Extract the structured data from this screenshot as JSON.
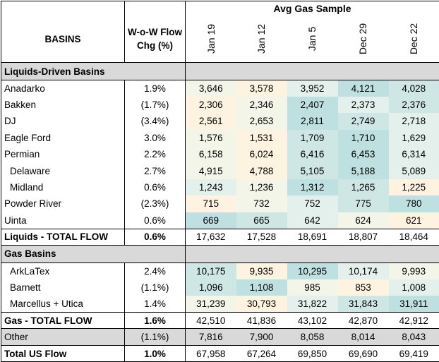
{
  "header": {
    "group_title": "Avg Gas Sample",
    "basins_label": "BASINS",
    "flow_label_line1": "W-o-W Flow",
    "flow_label_line2": "Chg (%)",
    "dates": [
      "Jan 19",
      "Jan 12",
      "Jan 5",
      "Dec 29",
      "Dec 22"
    ]
  },
  "sections": {
    "liquids_title": "Liquids-Driven Basins",
    "gas_title": "Gas Basins"
  },
  "liquids_rows": [
    {
      "name": "Anadarko",
      "chg": "1.9%",
      "values": [
        "3,646",
        "3,578",
        "3,952",
        "4,121",
        "4,028"
      ],
      "indent": false
    },
    {
      "name": "Bakken",
      "chg": "(1.7%)",
      "values": [
        "2,306",
        "2,346",
        "2,407",
        "2,373",
        "2,376"
      ],
      "indent": false
    },
    {
      "name": "DJ",
      "chg": "(3.4%)",
      "values": [
        "2,561",
        "2,653",
        "2,811",
        "2,749",
        "2,718"
      ],
      "indent": false
    },
    {
      "name": "Eagle Ford",
      "chg": "3.0%",
      "values": [
        "1,576",
        "1,531",
        "1,709",
        "1,710",
        "1,629"
      ],
      "indent": false
    },
    {
      "name": "Permian",
      "chg": "2.2%",
      "values": [
        "6,158",
        "6,024",
        "6,416",
        "6,453",
        "6,314"
      ],
      "indent": false
    },
    {
      "name": "Delaware",
      "chg": "2.7%",
      "values": [
        "4,915",
        "4,788",
        "5,105",
        "5,188",
        "5,089"
      ],
      "indent": true
    },
    {
      "name": "Midland",
      "chg": "0.6%",
      "values": [
        "1,243",
        "1,236",
        "1,312",
        "1,265",
        "1,225"
      ],
      "indent": true
    },
    {
      "name": "Powder River",
      "chg": "(2.3%)",
      "values": [
        "715",
        "732",
        "752",
        "775",
        "780"
      ],
      "indent": false
    },
    {
      "name": "Uinta",
      "chg": "0.6%",
      "values": [
        "669",
        "665",
        "642",
        "624",
        "621"
      ],
      "indent": false
    }
  ],
  "liquids_total": {
    "name": "Liquids - TOTAL FLOW",
    "chg": "0.6%",
    "values": [
      "17,632",
      "17,528",
      "18,691",
      "18,807",
      "18,464"
    ]
  },
  "gas_rows": [
    {
      "name": "ArkLaTex",
      "chg": "2.4%",
      "values": [
        "10,175",
        "9,935",
        "10,295",
        "10,174",
        "9,993"
      ],
      "indent": true
    },
    {
      "name": "Barnett",
      "chg": "(1.1%)",
      "values": [
        "1,096",
        "1,108",
        "985",
        "853",
        "1,008"
      ],
      "indent": true
    },
    {
      "name": "Marcellus + Utica",
      "chg": "1.4%",
      "values": [
        "31,239",
        "30,793",
        "31,822",
        "31,843",
        "31,911"
      ],
      "indent": true
    }
  ],
  "gas_total": {
    "name": "Gas - TOTAL FLOW",
    "chg": "1.6%",
    "values": [
      "42,510",
      "41,836",
      "43,102",
      "42,870",
      "42,912"
    ]
  },
  "other": {
    "name": "Other",
    "chg": "(1.1%)",
    "values": [
      "7,816",
      "7,900",
      "8,058",
      "8,014",
      "8,043"
    ]
  },
  "us_total": {
    "name": "Total US Flow",
    "chg": "1.0%",
    "values": [
      "67,958",
      "67,264",
      "69,850",
      "69,690",
      "69,419"
    ]
  },
  "heat_colors": {
    "low": "#fdf3e0",
    "mid": "#e3f0ec",
    "high": "#bfe0e0"
  }
}
